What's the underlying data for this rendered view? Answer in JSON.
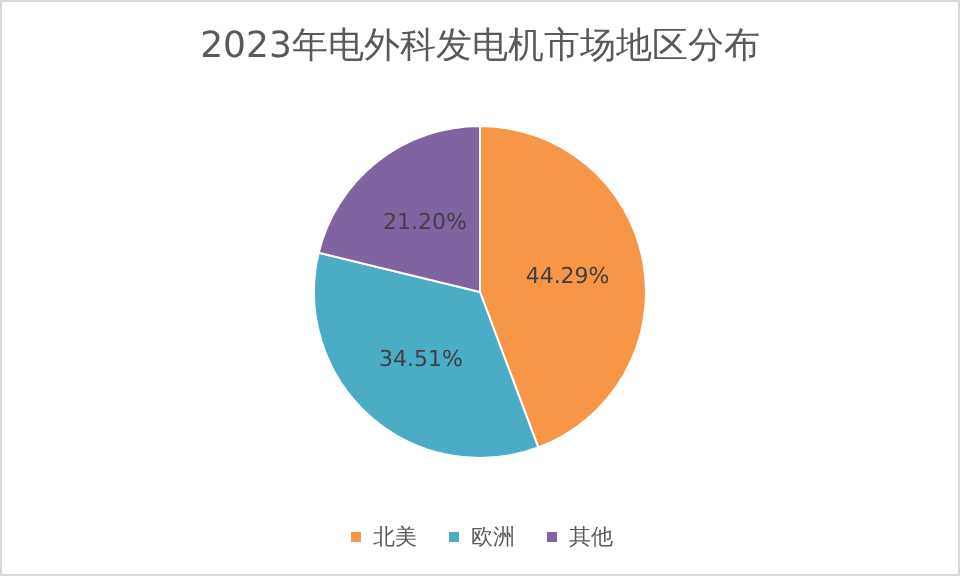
{
  "chart_data": {
    "type": "pie",
    "title": "2023年电外科发电机市场地区分布",
    "categories": [
      "北美",
      "欧洲",
      "其他"
    ],
    "values": [
      44.29,
      34.51,
      21.2
    ],
    "value_labels": [
      "44.29%",
      "34.51%",
      "21.20%"
    ],
    "colors": [
      "#f79646",
      "#4bacc6",
      "#8064a2"
    ],
    "legend": "bottom"
  }
}
